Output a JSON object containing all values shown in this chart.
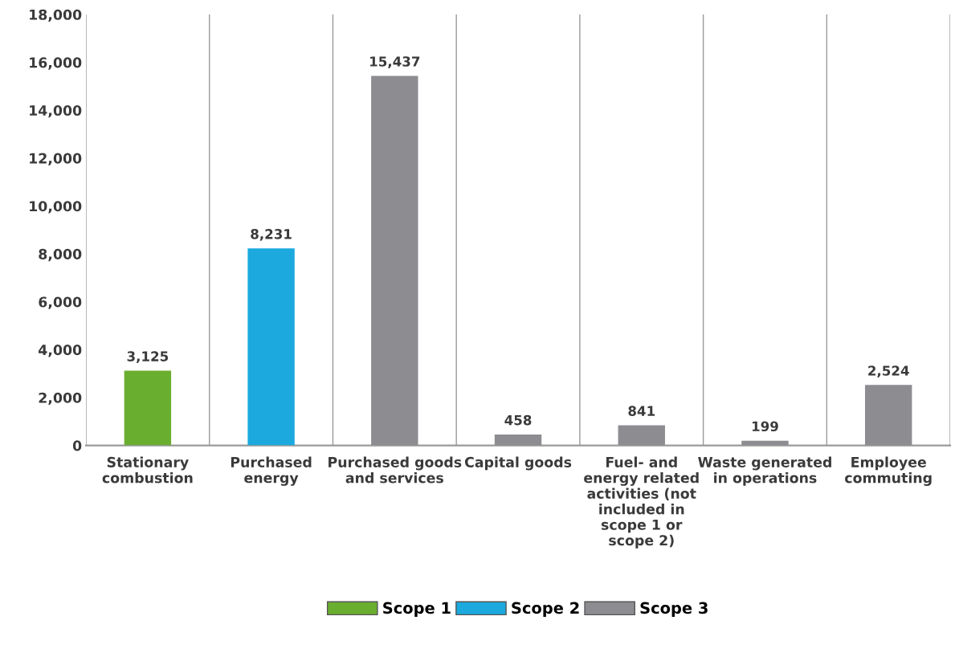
{
  "chart_data": {
    "type": "bar",
    "categories": [
      "Stationary combustion",
      "Purchased energy",
      "Purchased goods and services",
      "Capital goods",
      "Fuel- and energy related activities (not included in scope 1 or scope 2)",
      "Waste generated in operations",
      "Employee commuting"
    ],
    "series": [
      {
        "name": "Scope 1",
        "color": "#6aae2f",
        "values": [
          3125,
          null,
          null,
          null,
          null,
          null,
          null
        ],
        "value_labels": [
          "3,125",
          null,
          null,
          null,
          null,
          null,
          null
        ]
      },
      {
        "name": "Scope 2",
        "color": "#1ba9de",
        "values": [
          null,
          8231,
          null,
          null,
          null,
          null,
          null
        ],
        "value_labels": [
          null,
          "8,231",
          null,
          null,
          null,
          null,
          null
        ]
      },
      {
        "name": "Scope 3",
        "color": "#8d8c91",
        "values": [
          null,
          null,
          15437,
          458,
          841,
          199,
          2524
        ],
        "value_labels": [
          null,
          null,
          "15,437",
          "458",
          "841",
          "199",
          "2,524"
        ]
      }
    ],
    "ylim": [
      0,
      18000
    ],
    "yticks": [
      0,
      {
        "value": 2000,
        "label": "2,000"
      },
      {
        "value": 4000,
        "label": "4,000"
      },
      {
        "value": 6000,
        "label": "6,000"
      },
      {
        "value": 8000,
        "label": "8,000"
      },
      {
        "value": 10000,
        "label": "10,000"
      },
      {
        "value": 12000,
        "label": "12,000"
      },
      {
        "value": 14000,
        "label": "14,000"
      },
      {
        "value": 16000,
        "label": "16,000"
      },
      {
        "value": 18000,
        "label": "18,000"
      }
    ],
    "grid": "x",
    "legend": "bottom"
  }
}
